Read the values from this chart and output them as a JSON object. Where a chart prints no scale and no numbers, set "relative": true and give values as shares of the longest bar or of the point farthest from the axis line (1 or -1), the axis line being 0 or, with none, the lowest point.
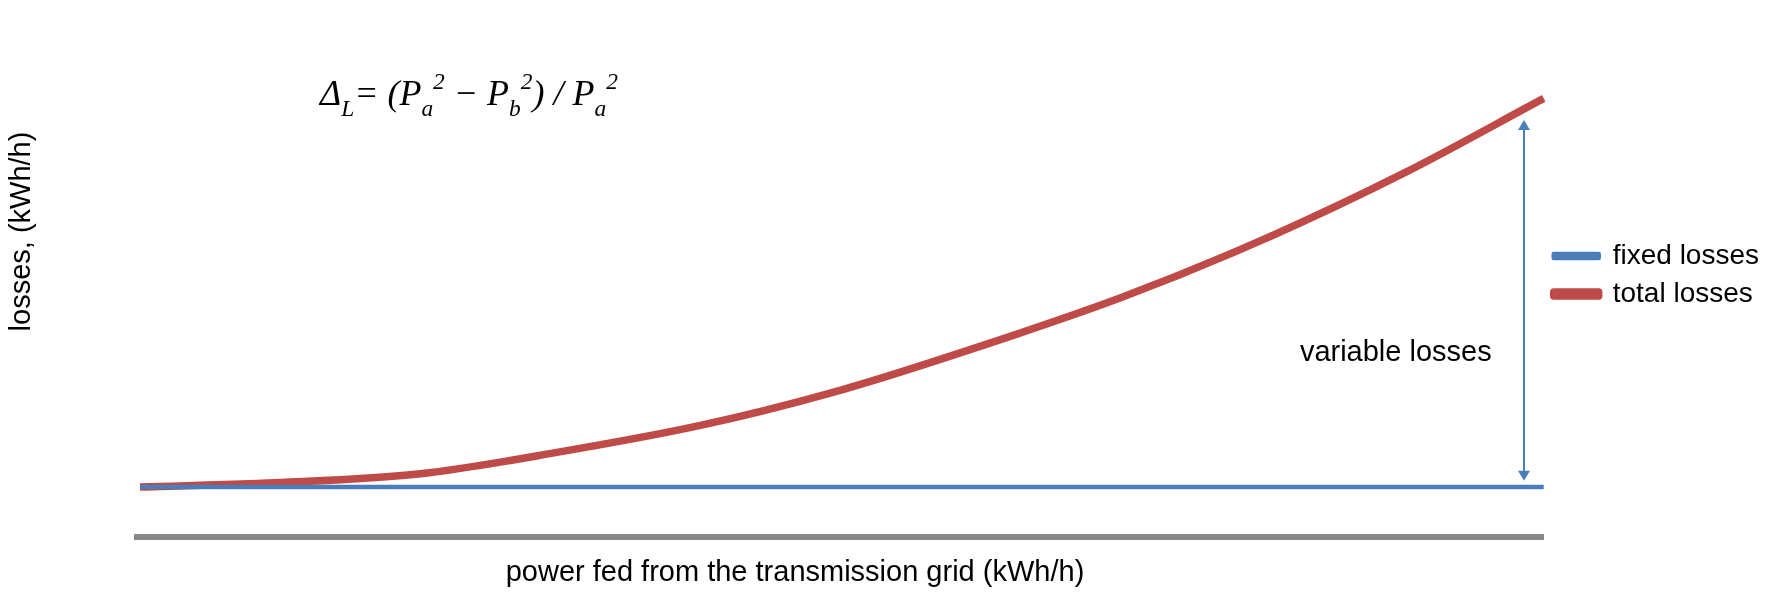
{
  "chart_data": {
    "type": "line",
    "relative": true,
    "xlabel": "power fed from the transmission grid (kWh/h)",
    "ylabel": "losses,  (kWh/h)",
    "categories": [
      null,
      null,
      null,
      null,
      null,
      null,
      null,
      null,
      null,
      null,
      null
    ],
    "series": [
      {
        "name": "fixed losses",
        "color": "#4a7ebb",
        "values": [
          0.12,
          0.12,
          0.12,
          0.12,
          0.12,
          0.12,
          0.12,
          0.12,
          0.12,
          0.12,
          0.12
        ]
      },
      {
        "name": "total losses",
        "color": "#be4b48",
        "values": [
          0.12,
          0.13,
          0.15,
          0.2,
          0.26,
          0.34,
          0.44,
          0.55,
          0.68,
          0.83,
          1.0
        ]
      }
    ],
    "annotations": [
      "Δ$_{L}$= (P$_{a}$$^{2}$ − P$_{b}$$^{2}$) / P$_{a}$$^{2}$",
      "variable losses"
    ],
    "legend": "right",
    "marker": "none",
    "line_style": "solid",
    "grid": false
  }
}
